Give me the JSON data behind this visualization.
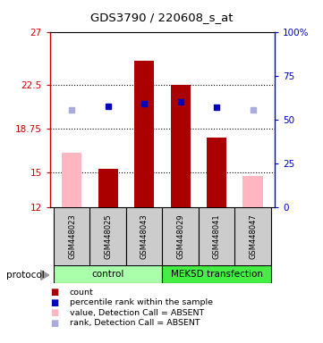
{
  "title": "GDS3790 / 220608_s_at",
  "samples": [
    "GSM448023",
    "GSM448025",
    "GSM448043",
    "GSM448029",
    "GSM448041",
    "GSM448047"
  ],
  "ylim_left": [
    12,
    27
  ],
  "ylim_right": [
    0,
    100
  ],
  "yticks_left": [
    12,
    15,
    18.75,
    22.5,
    27
  ],
  "ytick_labels_left": [
    "12",
    "15",
    "18.75",
    "22.5",
    "27"
  ],
  "yticks_right": [
    0,
    25,
    50,
    75,
    100
  ],
  "ytick_labels_right": [
    "0",
    "25",
    "50",
    "75",
    "100%"
  ],
  "bar_values": [
    16.7,
    15.3,
    24.6,
    22.5,
    18.0,
    14.7
  ],
  "bar_absent": [
    true,
    false,
    false,
    false,
    false,
    true
  ],
  "rank_values": [
    20.4,
    20.7,
    20.9,
    21.1,
    20.6,
    20.4
  ],
  "rank_absent": [
    true,
    false,
    false,
    false,
    false,
    true
  ],
  "bar_color_present": "#AA0000",
  "bar_color_absent": "#FFB6C1",
  "rank_color_present": "#0000BB",
  "rank_color_absent": "#AAAADD",
  "bar_width": 0.55,
  "left_axis_color": "#CC0000",
  "right_axis_color": "#0000CC",
  "grid_dotted": [
    15,
    18.75,
    22.5
  ],
  "group1_label": "control",
  "group2_label": "MEK5D transfection",
  "group1_color": "#AAFFAA",
  "group2_color": "#44EE44",
  "sample_box_color": "#CCCCCC",
  "legend_items": [
    {
      "color": "#AA0000",
      "label": "count"
    },
    {
      "color": "#0000BB",
      "label": "percentile rank within the sample"
    },
    {
      "color": "#FFB6C1",
      "label": "value, Detection Call = ABSENT"
    },
    {
      "color": "#AAAADD",
      "label": "rank, Detection Call = ABSENT"
    }
  ]
}
